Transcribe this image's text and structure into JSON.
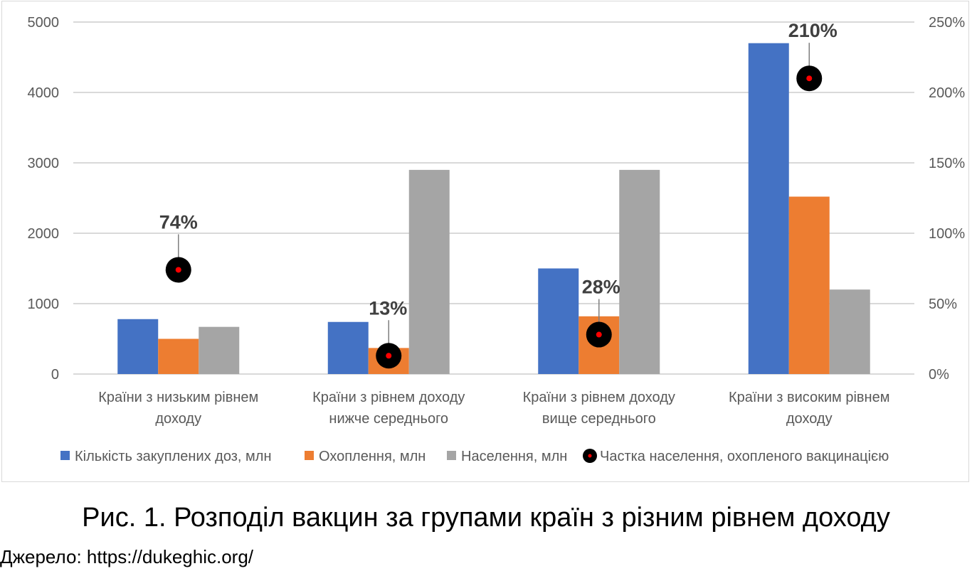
{
  "chart_data": {
    "type": "bar",
    "categories": [
      [
        "Країни з низьким рівнем",
        "доходу"
      ],
      [
        "Країни з рівнем доходу",
        "нижче середнього"
      ],
      [
        "Країни з рівнем доходу",
        "вище середнього"
      ],
      [
        "Країни з високим рівнем",
        "доходу"
      ]
    ],
    "series": [
      {
        "name": "Кількість закуплених доз, млн",
        "values": [
          780,
          740,
          1500,
          4700
        ],
        "color": "#4472C4",
        "axis": "left"
      },
      {
        "name": "Охоплення, млн",
        "values": [
          500,
          370,
          820,
          2520
        ],
        "color": "#ED7D31",
        "axis": "left"
      },
      {
        "name": "Населення, млн",
        "values": [
          670,
          2900,
          2900,
          1200
        ],
        "color": "#A5A5A5",
        "axis": "left"
      }
    ],
    "marker_series": {
      "name": "Частка населення, охопленого вакцинацією",
      "values": [
        74,
        13,
        28,
        210
      ],
      "labels": [
        "74%",
        "13%",
        "28%",
        "210%"
      ],
      "axis": "right",
      "color": "#000000",
      "center_color": "#FF0000"
    },
    "left_axis": {
      "min": 0,
      "max": 5000,
      "ticks": [
        "0",
        "1000",
        "2000",
        "3000",
        "4000",
        "5000"
      ]
    },
    "right_axis": {
      "min": 0,
      "max": 250,
      "ticks": [
        "0%",
        "50%",
        "100%",
        "150%",
        "200%",
        "250%"
      ]
    },
    "grid": true,
    "legend_position": "bottom"
  },
  "caption": "Рис. 1. Розподіл вакцин за групами країн з різним рівнем доходу",
  "source": "Джерело: https://dukeghic.org/"
}
